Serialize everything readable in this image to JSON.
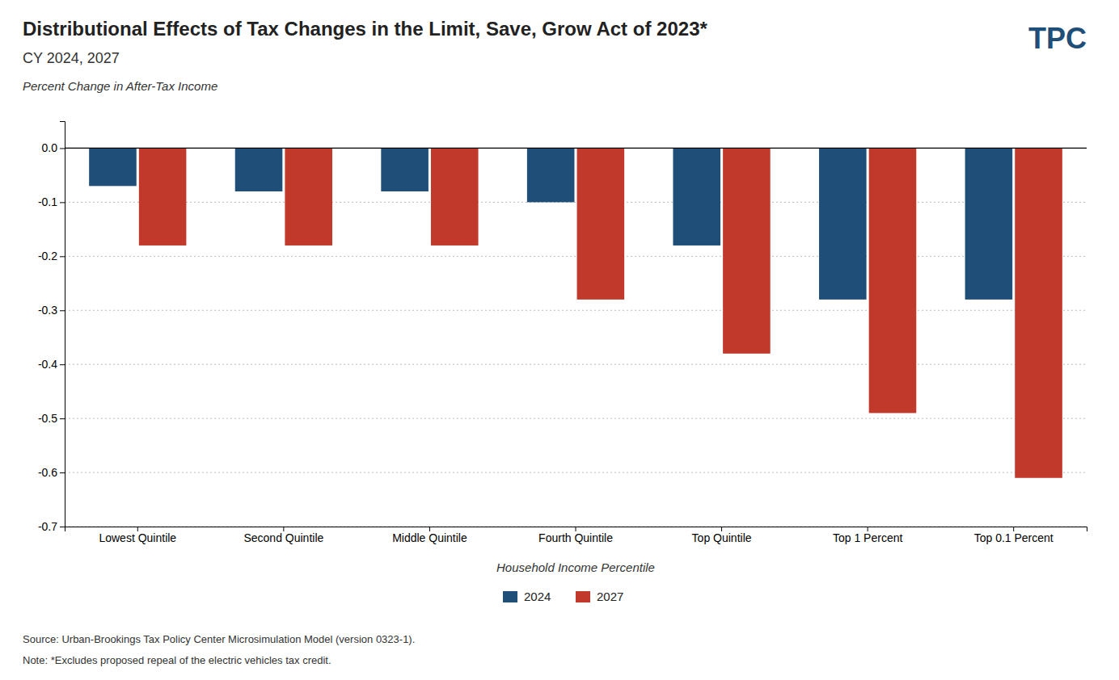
{
  "chart_data": {
    "type": "bar",
    "title": "Distributional Effects of Tax Changes in the Limit, Save, Grow Act of 2023*",
    "subtitle": "CY 2024, 2027",
    "ylabel": "Percent Change in After-Tax Income",
    "xlabel": "Household Income Percentile",
    "categories": [
      "Lowest Quintile",
      "Second Quintile",
      "Middle Quintile",
      "Fourth Quintile",
      "Top Quintile",
      "Top 1 Percent",
      "Top 0.1 Percent"
    ],
    "series": [
      {
        "name": "2024",
        "color": "#1F4E79",
        "values": [
          -0.07,
          -0.08,
          -0.08,
          -0.1,
          -0.18,
          -0.28,
          -0.28
        ]
      },
      {
        "name": "2027",
        "color": "#C0392B",
        "values": [
          -0.18,
          -0.18,
          -0.18,
          -0.28,
          -0.38,
          -0.49,
          -0.61
        ]
      }
    ],
    "ylim": [
      -0.7,
      0.05
    ],
    "yticks": [
      {
        "value": 0.0,
        "label": "0.0"
      },
      -0.1,
      -0.2,
      -0.3,
      -0.4,
      -0.5,
      -0.6,
      -0.7
    ],
    "grid": true,
    "legend": "bottom",
    "annotations": [
      "Source: Urban-Brookings Tax Policy Center Microsimulation Model (version 0323-1).",
      "Note: *Excludes proposed repeal of the electric vehicles tax credit.",
      "TPC"
    ]
  }
}
